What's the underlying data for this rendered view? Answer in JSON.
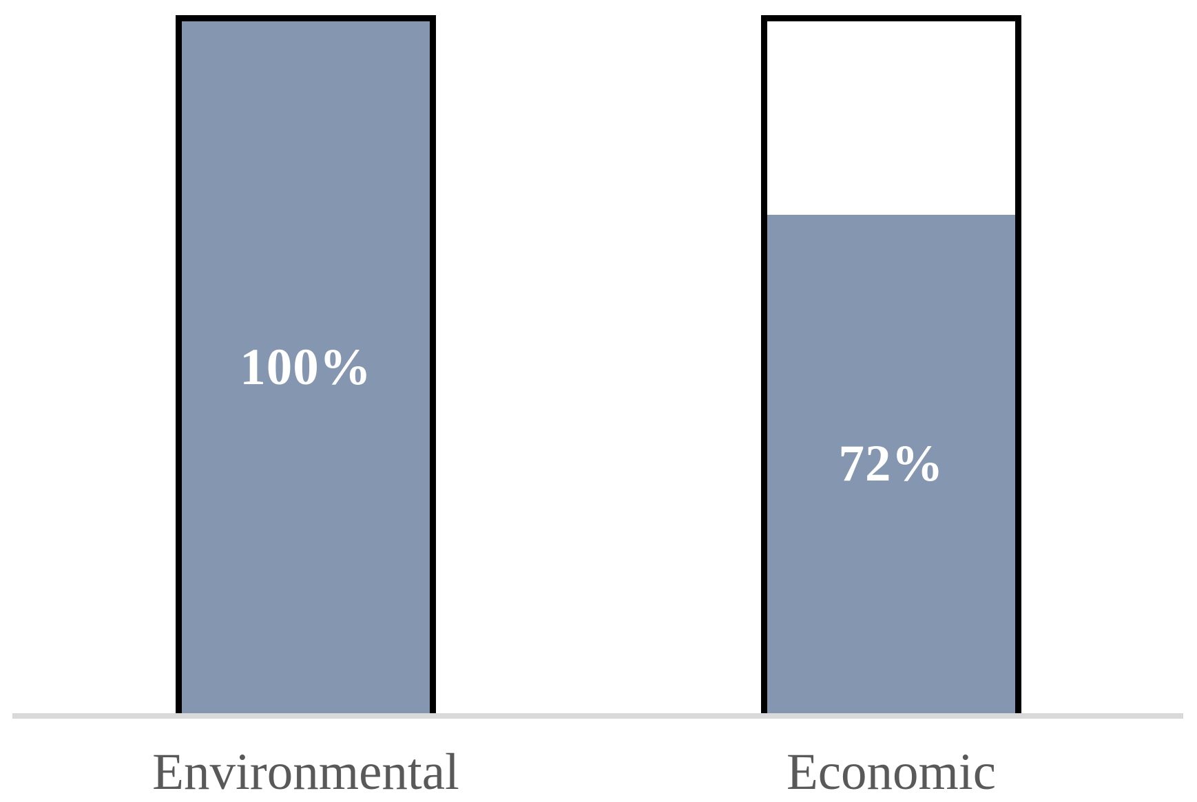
{
  "chart_data": {
    "type": "bar",
    "orientation": "vertical",
    "categories": [
      "Environmental",
      "Economic"
    ],
    "values": [
      100,
      72
    ],
    "value_labels": [
      "100%",
      "72%"
    ],
    "title": "",
    "xlabel": "",
    "ylabel": "",
    "ylim": [
      0,
      100
    ],
    "grid": false,
    "legend": false,
    "colors": {
      "bar_fill": "#8496B0",
      "bar_unfilled": "#FFFFFF",
      "bar_border": "#000000",
      "value_label_text": "#FFFFFF",
      "category_label_text": "#595959",
      "axis_line": "#D9D9D9",
      "background": "#FFFFFF"
    }
  }
}
